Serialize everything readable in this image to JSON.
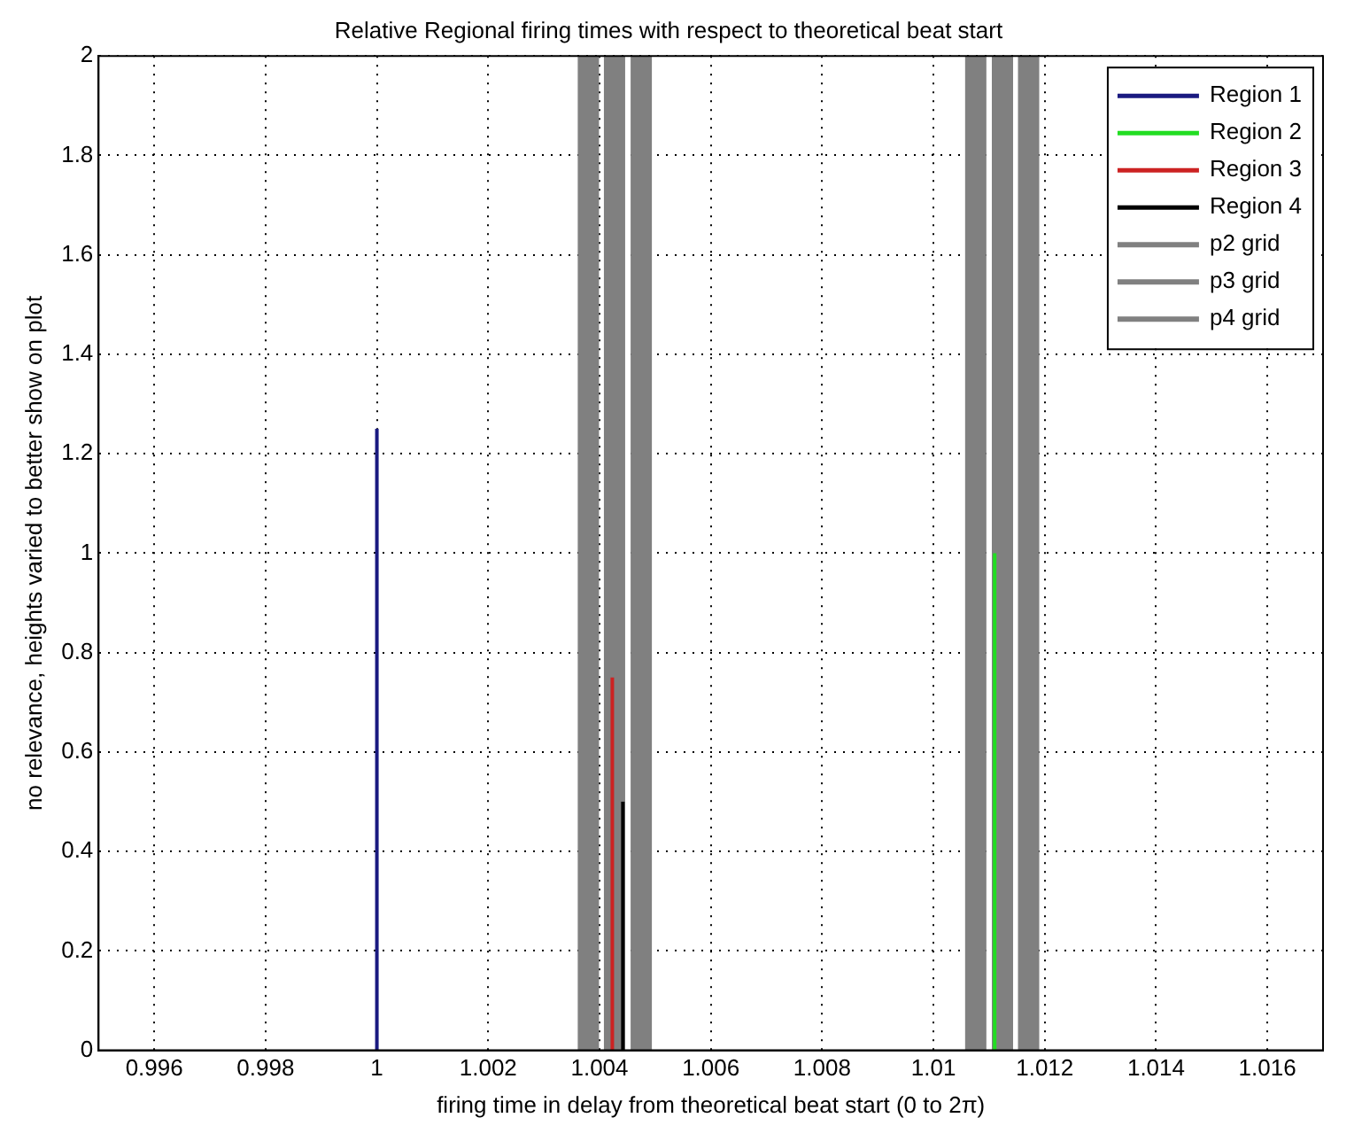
{
  "chart_data": {
    "type": "line",
    "title": "Relative Regional firing times with respect to theoretical beat start",
    "xlabel": "firing time in delay from theoretical beat start (0 to 2π)",
    "ylabel": "no relevance, heights varied to better show on plot",
    "xlim": [
      0.995,
      1.017
    ],
    "xticks": [
      0.996,
      0.998,
      1,
      1.002,
      1.004,
      1.006,
      1.008,
      1.01,
      1.012,
      1.014,
      1.016
    ],
    "ylim": [
      0,
      2
    ],
    "yticks": [
      0,
      0.2,
      0.4,
      0.6,
      0.8,
      1,
      1.2,
      1.4,
      1.6,
      1.8,
      2
    ],
    "grid": true,
    "legend": "top right",
    "marker": "none",
    "series": [
      {
        "name": "Region 1",
        "color": "#1a1a80",
        "x": [
          1,
          1
        ],
        "values": [
          0,
          1.25
        ]
      },
      {
        "name": "Region 2",
        "color": "#22dd22",
        "x": [
          1.0111,
          1.0111
        ],
        "values": [
          0,
          1
        ]
      },
      {
        "name": "Region 3",
        "color": "#cc2222",
        "x": [
          1.00423,
          1.00423
        ],
        "values": [
          0,
          0.75
        ]
      },
      {
        "name": "Region 4",
        "color": "#000000",
        "x": [
          1.00442,
          1.00442
        ],
        "values": [
          0,
          0.5
        ]
      },
      {
        "name": "p2 grid",
        "color": "#808080",
        "x": [
          1.0038,
          1.0038,
          null,
          1.01076,
          1.01076
        ],
        "values": [
          0,
          2,
          null,
          2,
          0
        ]
      },
      {
        "name": "p3 grid",
        "color": "#808080",
        "x": [
          1.00427,
          1.00427,
          null,
          1.01124,
          1.01124
        ],
        "values": [
          0,
          2,
          null,
          2,
          0
        ]
      },
      {
        "name": "p4 grid",
        "color": "#808080",
        "x": [
          1.00475,
          1.00475,
          null,
          1.01171,
          1.01171
        ],
        "values": [
          0,
          2,
          null,
          2,
          0
        ]
      }
    ]
  }
}
